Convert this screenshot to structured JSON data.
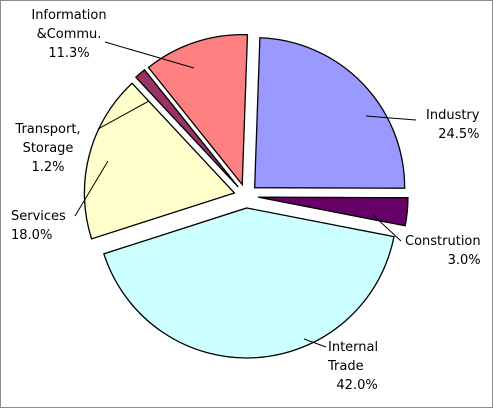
{
  "chart_data": {
    "type": "pie",
    "title": "",
    "slices": [
      {
        "name": "Industry",
        "name_lines": [
          "Industry"
        ],
        "value": 24.5,
        "display": "24.5%",
        "color": "#9999FF",
        "anchor": "start"
      },
      {
        "name": "Constrution",
        "name_lines": [
          "Constrution"
        ],
        "value": 3.0,
        "display": "3.0%",
        "color": "#660066",
        "anchor": "start"
      },
      {
        "name": "Internal Trade",
        "name_lines": [
          "Internal",
          "Trade"
        ],
        "value": 42.0,
        "display": "42.0%",
        "color": "#CCFFFF",
        "anchor": "start"
      },
      {
        "name": "Services",
        "name_lines": [
          "Services"
        ],
        "value": 18.0,
        "display": "18.0%",
        "color": "#FFFFCC",
        "anchor": "start"
      },
      {
        "name": "Transport, Storage",
        "name_lines": [
          "Transport,",
          "Storage"
        ],
        "value": 1.2,
        "display": "1.2%",
        "color": "#993366",
        "anchor": "middle"
      },
      {
        "name": "Information & Commu.",
        "name_lines": [
          "Information",
          "&Commu."
        ],
        "value": 11.3,
        "display": "11.3%",
        "color": "#FF8080",
        "anchor": "middle"
      }
    ]
  }
}
